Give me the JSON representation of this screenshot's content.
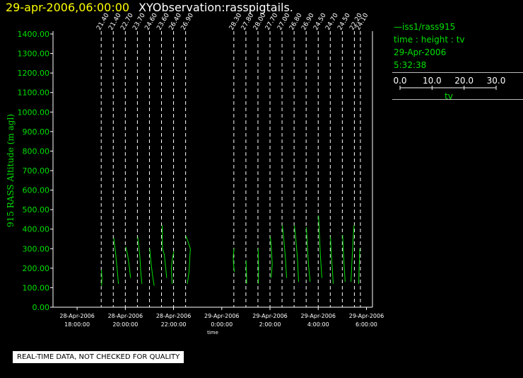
{
  "header": {
    "date_time": "29-apr-2006,06:00:00",
    "observation": "XYObservation:rasspigtails."
  },
  "legend": {
    "series": "iss1/rass915",
    "axes": "time : height : tv",
    "date": "29-Apr-2006",
    "time": "5:32:38",
    "scale_ticks": [
      "0.0",
      "10.0",
      "20.0",
      "30.0"
    ],
    "scale_label": "tv",
    "color": "#00e000"
  },
  "notice": "REAL-TIME DATA, NOT CHECKED FOR QUALITY",
  "chart_data": {
    "type": "line",
    "title": "",
    "xlabel": "time",
    "ylabel": "915 RASS Altitude (m agl)",
    "ylim": [
      0,
      1400
    ],
    "yticks": [
      "0.00",
      "100.00",
      "200.00",
      "300.00",
      "400.00",
      "500.00",
      "600.00",
      "700.00",
      "800.00",
      "900.00",
      "1000.00",
      "1100.00",
      "1200.00",
      "1300.00",
      "1400.00"
    ],
    "xlim": [
      "2006-04-28 17:00",
      "2006-04-29 06:15"
    ],
    "xticks": [
      {
        "t": "2006-04-28 18:00",
        "date": "28-Apr-2006",
        "time": "18:00:00"
      },
      {
        "t": "2006-04-28 20:00",
        "date": "28-Apr-2006",
        "time": "20:00:00"
      },
      {
        "t": "2006-04-28 22:00",
        "date": "28-Apr-2006",
        "time": "22:00:00"
      },
      {
        "t": "2006-04-29 00:00",
        "date": "29-Apr-2006",
        "time": "0:00:00"
      },
      {
        "t": "2006-04-29 02:00",
        "date": "29-Apr-2006",
        "time": "2:00:00"
      },
      {
        "t": "2006-04-29 04:00",
        "date": "29-Apr-2006",
        "time": "4:00:00"
      },
      {
        "t": "2006-04-29 06:00",
        "date": "29-Apr-2006",
        "time": "6:00:00"
      }
    ],
    "tv_scale": [
      0,
      30
    ],
    "profiles": [
      {
        "t": "2006-04-28 19:00",
        "label": "21.40",
        "points": [
          [
            0.3,
            110
          ],
          [
            0.6,
            150
          ],
          [
            0.2,
            190
          ]
        ]
      },
      {
        "t": "2006-04-28 19:30",
        "label": "21.40",
        "points": [
          [
            0.4,
            355
          ],
          [
            2.0,
            280
          ],
          [
            3.5,
            190
          ],
          [
            4.6,
            120
          ]
        ]
      },
      {
        "t": "2006-04-28 20:00",
        "label": "22.70",
        "points": [
          [
            0.3,
            310
          ],
          [
            2.0,
            270
          ],
          [
            3.5,
            210
          ],
          [
            4.6,
            150
          ]
        ]
      },
      {
        "t": "2006-04-28 20:30",
        "label": "23.70",
        "points": [
          [
            0.3,
            360
          ],
          [
            2.2,
            260
          ],
          [
            3.0,
            180
          ],
          [
            4.0,
            120
          ]
        ]
      },
      {
        "t": "2006-04-28 21:00",
        "label": "24.60",
        "points": [
          [
            0.2,
            300
          ],
          [
            1.5,
            220
          ],
          [
            3.0,
            150
          ],
          [
            4.2,
            110
          ]
        ]
      },
      {
        "t": "2006-04-28 21:30",
        "label": "23.60",
        "points": [
          [
            0.6,
            420
          ],
          [
            0.8,
            300
          ],
          [
            2.5,
            270
          ],
          [
            4.6,
            150
          ]
        ]
      },
      {
        "t": "2006-04-28 22:00",
        "label": "26.40",
        "points": [
          [
            0.3,
            285
          ],
          [
            -1.0,
            250
          ],
          [
            -2.0,
            200
          ],
          [
            -1.2,
            120
          ]
        ]
      },
      {
        "t": "2006-04-28 22:30",
        "label": "26.90",
        "points": [
          [
            0.3,
            365
          ],
          [
            2.5,
            330
          ],
          [
            4.2,
            300
          ],
          [
            3.0,
            180
          ],
          [
            1.5,
            120
          ]
        ]
      },
      {
        "t": "2006-04-29 00:30",
        "label": "28.30",
        "points": [
          [
            0.2,
            300
          ],
          [
            -0.5,
            260
          ],
          [
            -0.3,
            220
          ],
          [
            0.6,
            180
          ]
        ]
      },
      {
        "t": "2006-04-29 01:00",
        "label": "27.80",
        "points": [
          [
            0.2,
            240
          ],
          [
            0.4,
            200
          ],
          [
            0.6,
            160
          ],
          [
            0.7,
            120
          ]
        ]
      },
      {
        "t": "2006-04-29 01:30",
        "label": "28.00",
        "points": [
          [
            0.2,
            300
          ],
          [
            0.4,
            250
          ],
          [
            0.6,
            200
          ],
          [
            0.4,
            120
          ]
        ]
      },
      {
        "t": "2006-04-29 02:00",
        "label": "27.70",
        "points": [
          [
            0.3,
            360
          ],
          [
            1.2,
            300
          ],
          [
            2.0,
            220
          ],
          [
            1.0,
            150
          ]
        ]
      },
      {
        "t": "2006-04-29 02:30",
        "label": "27.00",
        "points": [
          [
            0.2,
            420
          ],
          [
            1.5,
            350
          ],
          [
            3.0,
            250
          ],
          [
            4.0,
            150
          ]
        ]
      },
      {
        "t": "2006-04-29 03:00",
        "label": "26.80",
        "points": [
          [
            0.2,
            420
          ],
          [
            1.5,
            350
          ],
          [
            3.0,
            250
          ],
          [
            4.0,
            130
          ]
        ]
      },
      {
        "t": "2006-04-29 03:30",
        "label": "26.90",
        "points": [
          [
            0.2,
            410
          ],
          [
            1.0,
            320
          ],
          [
            2.0,
            220
          ],
          [
            3.5,
            130
          ]
        ]
      },
      {
        "t": "2006-04-29 04:00",
        "label": "24.50",
        "points": [
          [
            0.3,
            470
          ],
          [
            1.0,
            380
          ],
          [
            2.0,
            260
          ],
          [
            3.2,
            150
          ]
        ]
      },
      {
        "t": "2006-04-29 04:30",
        "label": "24.70",
        "points": [
          [
            0.2,
            360
          ],
          [
            0.8,
            280
          ],
          [
            1.8,
            200
          ],
          [
            2.6,
            120
          ]
        ]
      },
      {
        "t": "2006-04-29 05:00",
        "label": "24.50",
        "points": [
          [
            0.3,
            370
          ],
          [
            0.8,
            300
          ],
          [
            1.5,
            220
          ],
          [
            2.5,
            130
          ]
        ]
      },
      {
        "t": "2006-04-29 05:30",
        "label": "22.20",
        "points": [
          [
            -0.3,
            420
          ],
          [
            -1.2,
            340
          ],
          [
            -2.2,
            230
          ],
          [
            -3.0,
            130
          ]
        ]
      },
      {
        "t": "2006-04-29 05:45",
        "label": "24.10",
        "points": [
          [
            -0.5,
            300
          ],
          [
            -1.0,
            220
          ],
          [
            -1.5,
            120
          ]
        ]
      }
    ]
  }
}
